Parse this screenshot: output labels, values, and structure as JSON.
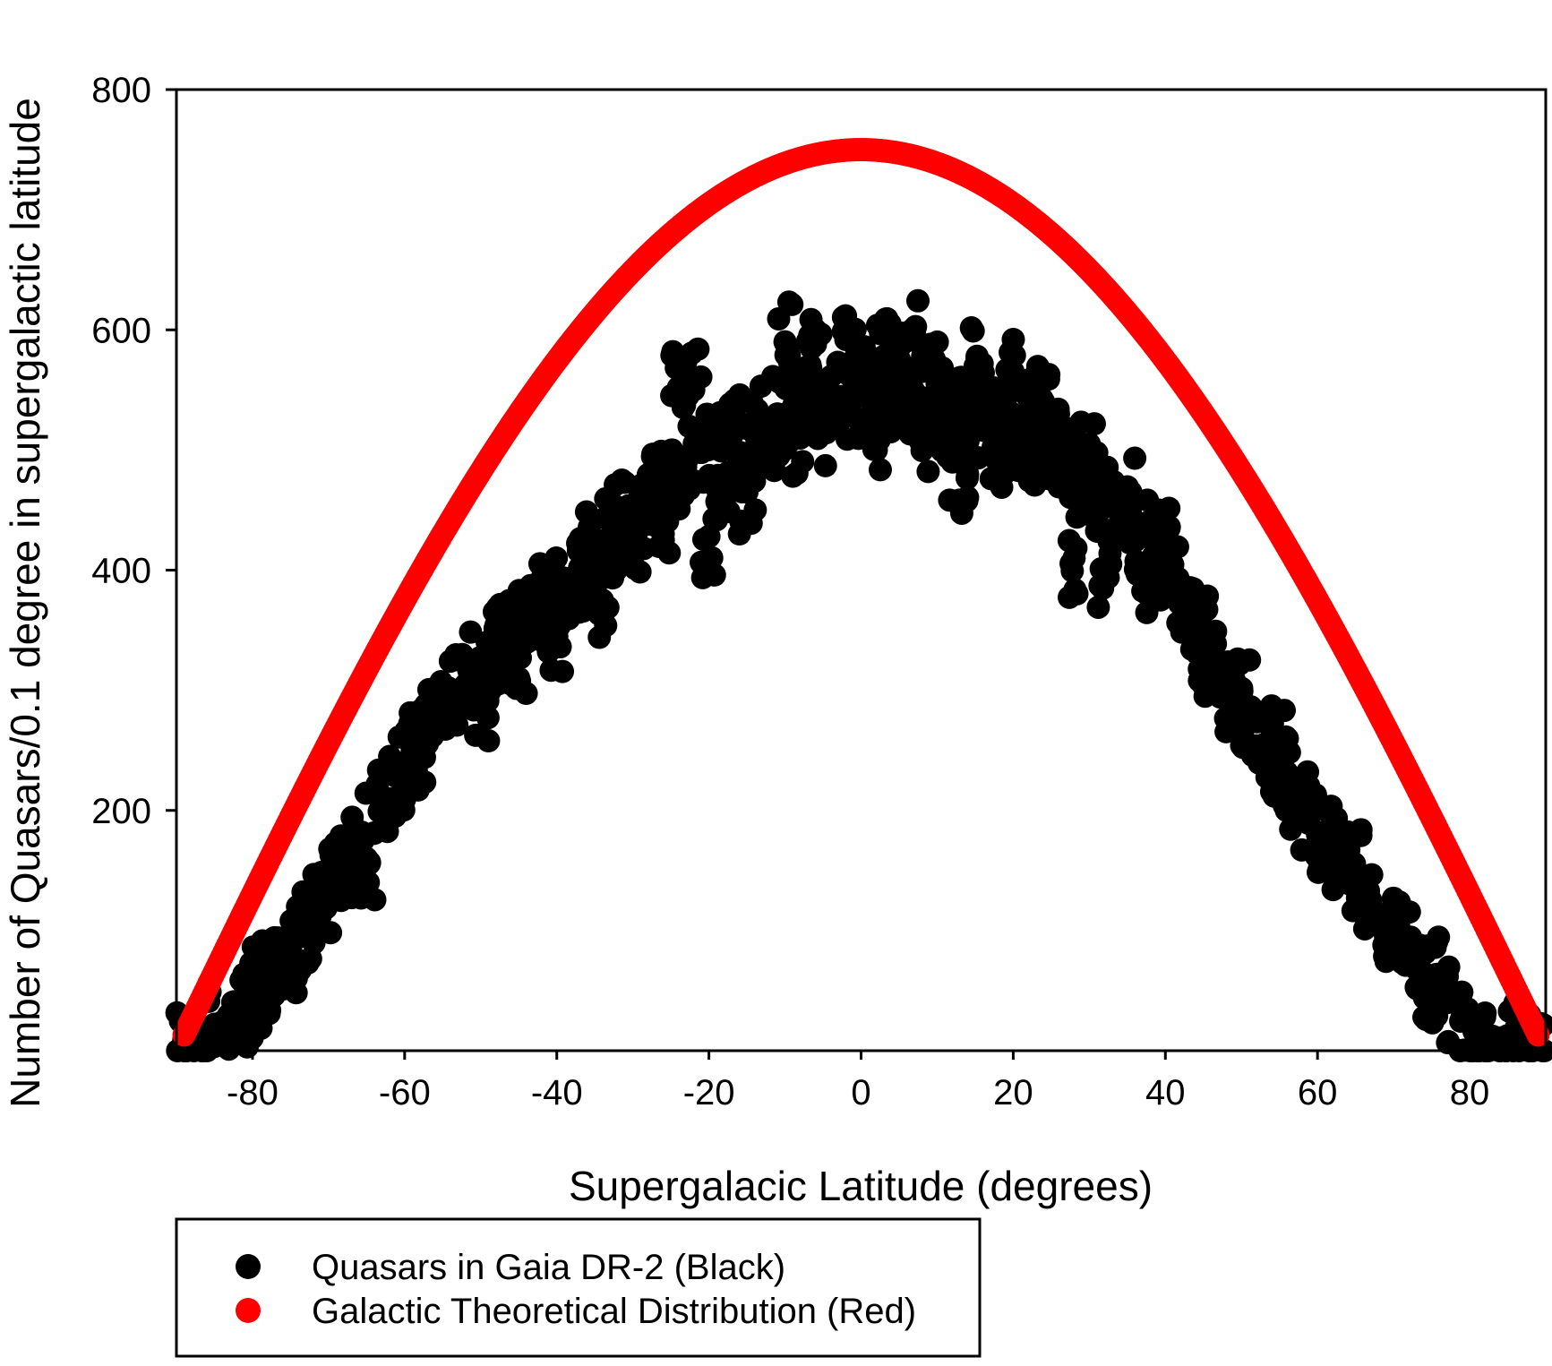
{
  "chart_data": {
    "type": "scatter",
    "title": "",
    "xlabel": "Supergalacic Latitude (degrees)",
    "ylabel": "Number of Quasars/0.1 degree in supergalactic latitude",
    "xlim": [
      -90,
      90
    ],
    "ylim": [
      0,
      800
    ],
    "x_ticks": [
      -80,
      -60,
      -40,
      -20,
      0,
      20,
      40,
      60,
      80
    ],
    "y_ticks": [
      200,
      400,
      600,
      800
    ],
    "grid": false,
    "legend_position": "bottom",
    "series": [
      {
        "name": "Quasars in Gaia DR-2 (Black)",
        "color": "#000000",
        "points": [
          [
            -89,
            5
          ],
          [
            -87,
            12
          ],
          [
            -85,
            22
          ],
          [
            -83,
            30
          ],
          [
            -81,
            40
          ],
          [
            -79,
            52
          ],
          [
            -77,
            68
          ],
          [
            -75,
            85
          ],
          [
            -73,
            102
          ],
          [
            -71,
            120
          ],
          [
            -69,
            140
          ],
          [
            -67,
            160
          ],
          [
            -65,
            180
          ],
          [
            -63,
            205
          ],
          [
            -61,
            228
          ],
          [
            -59,
            250
          ],
          [
            -57,
            268
          ],
          [
            -55,
            285
          ],
          [
            -53,
            300
          ],
          [
            -51,
            315
          ],
          [
            -49,
            328
          ],
          [
            -47,
            340
          ],
          [
            -45,
            352
          ],
          [
            -43,
            365
          ],
          [
            -41,
            378
          ],
          [
            -39,
            390
          ],
          [
            -37,
            402
          ],
          [
            -35,
            415
          ],
          [
            -33,
            428
          ],
          [
            -31,
            440
          ],
          [
            -29,
            452
          ],
          [
            -27,
            465
          ],
          [
            -25,
            478
          ],
          [
            -23,
            490
          ],
          [
            -21,
            498
          ],
          [
            -19,
            505
          ],
          [
            -17,
            512
          ],
          [
            -15,
            518
          ],
          [
            -13,
            525
          ],
          [
            -11,
            530
          ],
          [
            -9,
            535
          ],
          [
            -7,
            538
          ],
          [
            -5,
            540
          ],
          [
            -3,
            542
          ],
          [
            -1,
            543
          ],
          [
            1,
            543
          ],
          [
            3,
            542
          ],
          [
            5,
            540
          ],
          [
            7,
            538
          ],
          [
            9,
            536
          ],
          [
            11,
            533
          ],
          [
            13,
            530
          ],
          [
            15,
            527
          ],
          [
            17,
            523
          ],
          [
            19,
            518
          ],
          [
            21,
            512
          ],
          [
            23,
            505
          ],
          [
            25,
            497
          ],
          [
            27,
            488
          ],
          [
            29,
            478
          ],
          [
            31,
            467
          ],
          [
            33,
            455
          ],
          [
            35,
            442
          ],
          [
            37,
            428
          ],
          [
            39,
            410
          ],
          [
            41,
            390
          ],
          [
            43,
            368
          ],
          [
            45,
            345
          ],
          [
            47,
            320
          ],
          [
            49,
            298
          ],
          [
            51,
            275
          ],
          [
            53,
            255
          ],
          [
            55,
            235
          ],
          [
            57,
            218
          ],
          [
            59,
            200
          ],
          [
            61,
            182
          ],
          [
            63,
            165
          ],
          [
            65,
            145
          ],
          [
            67,
            125
          ],
          [
            69,
            105
          ],
          [
            71,
            85
          ],
          [
            73,
            68
          ],
          [
            75,
            52
          ],
          [
            77,
            40
          ],
          [
            79,
            28
          ],
          [
            81,
            18
          ],
          [
            83,
            12
          ],
          [
            85,
            7
          ],
          [
            87,
            4
          ],
          [
            89,
            2
          ],
          [
            -10,
            590
          ],
          [
            -6,
            588
          ],
          [
            -2,
            592
          ],
          [
            7,
            598
          ],
          [
            3,
            578
          ],
          [
            -24,
            552
          ],
          [
            -22,
            550
          ],
          [
            -34,
            375
          ],
          [
            -40,
            345
          ],
          [
            -30,
            430
          ],
          [
            -26,
            425
          ],
          [
            -20,
            428
          ],
          [
            28,
            410
          ],
          [
            32,
            400
          ],
          [
            14,
            480
          ],
          [
            20,
            560
          ],
          [
            24,
            540
          ],
          [
            30,
            505
          ],
          [
            -15,
            465
          ],
          [
            -45,
            310
          ],
          [
            -55,
            300
          ],
          [
            -65,
            160
          ],
          [
            -75,
            80
          ],
          [
            45,
            330
          ],
          [
            50,
            300
          ],
          [
            55,
            250
          ],
          [
            60,
            180
          ],
          [
            65,
            150
          ],
          [
            70,
            100
          ],
          [
            75,
            60
          ],
          [
            -50,
            290
          ],
          [
            -60,
            240
          ],
          [
            -70,
            130
          ],
          [
            -80,
            38
          ],
          [
            5,
            565
          ],
          [
            10,
            555
          ],
          [
            15,
            570
          ],
          [
            -5,
            520
          ],
          [
            -12,
            500
          ],
          [
            12,
            490
          ],
          [
            -18,
            470
          ],
          [
            18,
            500
          ],
          [
            35,
            460
          ],
          [
            40,
            420
          ],
          [
            -36,
            395
          ],
          [
            -42,
            372
          ],
          [
            -48,
            345
          ],
          [
            -58,
            255
          ],
          [
            -68,
            150
          ],
          [
            -78,
            60
          ],
          [
            8,
            505
          ],
          [
            -8,
            510
          ],
          [
            0,
            575
          ],
          [
            2,
            500
          ],
          [
            16,
            545
          ],
          [
            22,
            525
          ],
          [
            26,
            510
          ],
          [
            -28,
            470
          ],
          [
            -32,
            440
          ],
          [
            38,
            380
          ]
        ]
      },
      {
        "name": "Galactic Theoretical Distribution (Red)",
        "color": "#ff0000",
        "curve": "cosine",
        "peak": 750,
        "x_start": -89,
        "x_end": 89,
        "x_step": 1
      }
    ],
    "legend": [
      {
        "label": "Quasars in Gaia DR-2 (Black)",
        "color": "#000000"
      },
      {
        "label": "Galactic Theoretical Distribution (Red)",
        "color": "#ff0000"
      }
    ]
  }
}
